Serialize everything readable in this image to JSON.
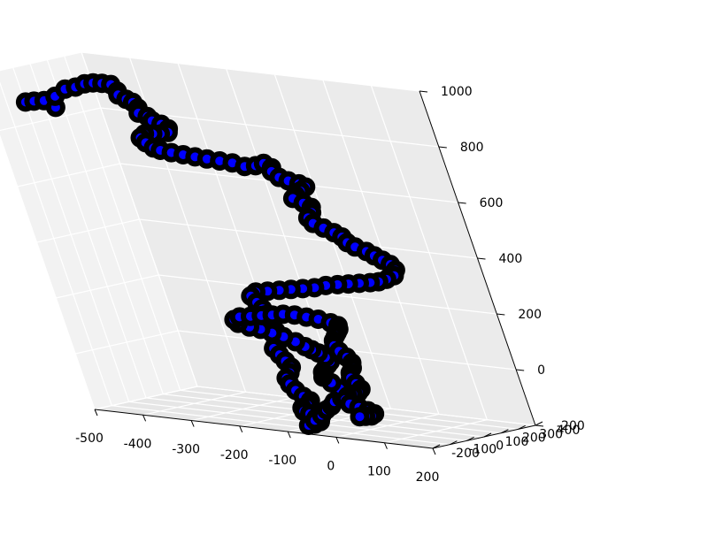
{
  "chart_data": {
    "type": "scatter",
    "projection": "3d",
    "title": "",
    "xlabel": "",
    "ylabel": "",
    "zlabel": "",
    "grid": true,
    "legend": "none",
    "xlim": [
      -500,
      200
    ],
    "ylim": [
      -200,
      400
    ],
    "zlim": [
      -200,
      1000
    ],
    "x_ticks": [
      -500,
      -400,
      -300,
      -200,
      -100,
      0,
      100,
      200
    ],
    "y_ticks": [
      -200,
      -100,
      0,
      100,
      200,
      300,
      400
    ],
    "z_ticks": [
      -200,
      0,
      200,
      400,
      600,
      800,
      1000
    ],
    "marker_color": "#0000ff",
    "marker_edge_color": "#000000",
    "pane_color": "#f2f2f2",
    "grid_color": "#e6e6e6",
    "series": [
      {
        "values_xyz": [
          [
            -455,
            -110,
            900
          ],
          [
            -440,
            -100,
            905
          ],
          [
            -420,
            -95,
            910
          ],
          [
            -400,
            -95,
            890
          ],
          [
            -395,
            -90,
            930
          ],
          [
            -370,
            -85,
            960
          ],
          [
            -350,
            -75,
            970
          ],
          [
            -330,
            -70,
            985
          ],
          [
            -315,
            -60,
            990
          ],
          [
            -300,
            -50,
            990
          ],
          [
            -290,
            -30,
            985
          ],
          [
            -285,
            -20,
            960
          ],
          [
            -290,
            -10,
            945
          ],
          [
            -280,
            0,
            930
          ],
          [
            -270,
            5,
            920
          ],
          [
            -265,
            10,
            900
          ],
          [
            -270,
            15,
            880
          ],
          [
            -255,
            20,
            870
          ],
          [
            -250,
            25,
            855
          ],
          [
            -235,
            30,
            845
          ],
          [
            -225,
            35,
            830
          ],
          [
            -230,
            40,
            815
          ],
          [
            -250,
            45,
            805
          ],
          [
            -270,
            55,
            800
          ],
          [
            -290,
            60,
            795
          ],
          [
            -300,
            55,
            780
          ],
          [
            -290,
            50,
            765
          ],
          [
            -275,
            45,
            750
          ],
          [
            -260,
            40,
            745
          ],
          [
            -240,
            45,
            740
          ],
          [
            -220,
            55,
            735
          ],
          [
            -200,
            65,
            730
          ],
          [
            -180,
            75,
            725
          ],
          [
            -160,
            90,
            720
          ],
          [
            -140,
            105,
            715
          ],
          [
            -120,
            115,
            705
          ],
          [
            -100,
            125,
            710
          ],
          [
            -85,
            135,
            720
          ],
          [
            -75,
            145,
            705
          ],
          [
            -80,
            150,
            690
          ],
          [
            -70,
            155,
            670
          ],
          [
            -55,
            160,
            660
          ],
          [
            -40,
            175,
            650
          ],
          [
            -30,
            180,
            640
          ],
          [
            -40,
            170,
            625
          ],
          [
            -50,
            160,
            610
          ],
          [
            -60,
            165,
            595
          ],
          [
            -45,
            175,
            580
          ],
          [
            -35,
            185,
            565
          ],
          [
            -40,
            190,
            545
          ],
          [
            -50,
            185,
            525
          ],
          [
            -45,
            190,
            505
          ],
          [
            -30,
            200,
            490
          ],
          [
            -15,
            210,
            475
          ],
          [
            -5,
            220,
            460
          ],
          [
            0,
            225,
            440
          ],
          [
            10,
            235,
            425
          ],
          [
            25,
            250,
            410
          ],
          [
            35,
            260,
            395
          ],
          [
            45,
            270,
            380
          ],
          [
            55,
            280,
            365
          ],
          [
            60,
            285,
            345
          ],
          [
            55,
            280,
            325
          ],
          [
            40,
            270,
            310
          ],
          [
            25,
            260,
            300
          ],
          [
            10,
            250,
            295
          ],
          [
            -10,
            240,
            290
          ],
          [
            -30,
            230,
            285
          ],
          [
            -50,
            220,
            280
          ],
          [
            -70,
            205,
            275
          ],
          [
            -90,
            190,
            265
          ],
          [
            -110,
            175,
            260
          ],
          [
            -130,
            160,
            255
          ],
          [
            -150,
            145,
            250
          ],
          [
            -170,
            130,
            245
          ],
          [
            -190,
            115,
            240
          ],
          [
            -200,
            105,
            225
          ],
          [
            -190,
            100,
            205
          ],
          [
            -180,
            95,
            185
          ],
          [
            -175,
            90,
            165
          ],
          [
            -180,
            85,
            145
          ],
          [
            -170,
            80,
            125
          ],
          [
            -160,
            75,
            110
          ],
          [
            -150,
            70,
            95
          ],
          [
            -155,
            65,
            80
          ],
          [
            -165,
            60,
            65
          ],
          [
            -170,
            55,
            50
          ],
          [
            -160,
            50,
            30
          ],
          [
            -150,
            45,
            10
          ],
          [
            -140,
            40,
            -10
          ],
          [
            -145,
            35,
            -30
          ],
          [
            -155,
            30,
            -50
          ],
          [
            -150,
            25,
            -70
          ],
          [
            -140,
            20,
            -90
          ],
          [
            -130,
            25,
            -110
          ],
          [
            -120,
            30,
            -125
          ],
          [
            -125,
            20,
            -140
          ],
          [
            -135,
            10,
            -150
          ],
          [
            -130,
            0,
            -160
          ],
          [
            -115,
            -10,
            -165
          ],
          [
            -100,
            -20,
            -175
          ],
          [
            -90,
            -30,
            -185
          ],
          [
            -100,
            -40,
            -195
          ],
          [
            -110,
            -50,
            -200
          ],
          [
            -95,
            -45,
            -180
          ],
          [
            -80,
            -35,
            -160
          ],
          [
            -70,
            -25,
            -140
          ],
          [
            -60,
            -15,
            -125
          ],
          [
            -55,
            -5,
            -110
          ],
          [
            -40,
            5,
            -95
          ],
          [
            -30,
            10,
            -80
          ],
          [
            -35,
            0,
            -60
          ],
          [
            -45,
            -10,
            -40
          ],
          [
            -55,
            -20,
            -20
          ],
          [
            -50,
            -25,
            0
          ],
          [
            -40,
            -30,
            15
          ],
          [
            -30,
            -35,
            30
          ],
          [
            -20,
            -40,
            45
          ],
          [
            -25,
            -45,
            60
          ],
          [
            -35,
            -50,
            75
          ],
          [
            -45,
            -55,
            85
          ],
          [
            -55,
            -60,
            95
          ],
          [
            -70,
            -65,
            110
          ],
          [
            -90,
            -70,
            125
          ],
          [
            -110,
            -75,
            135
          ],
          [
            -130,
            -80,
            145
          ],
          [
            -150,
            -85,
            150
          ],
          [
            -170,
            -90,
            160
          ],
          [
            -180,
            -80,
            170
          ],
          [
            -170,
            -70,
            180
          ],
          [
            -150,
            -60,
            185
          ],
          [
            -130,
            -50,
            190
          ],
          [
            -110,
            -40,
            195
          ],
          [
            -90,
            -30,
            200
          ],
          [
            -70,
            -20,
            200
          ],
          [
            -50,
            -10,
            195
          ],
          [
            -30,
            0,
            190
          ],
          [
            -10,
            10,
            180
          ],
          [
            0,
            20,
            170
          ],
          [
            -5,
            30,
            155
          ],
          [
            -15,
            40,
            140
          ],
          [
            -25,
            50,
            125
          ],
          [
            -35,
            55,
            105
          ],
          [
            -40,
            60,
            85
          ],
          [
            -35,
            65,
            65
          ],
          [
            -25,
            70,
            45
          ],
          [
            -20,
            75,
            25
          ],
          [
            -25,
            80,
            5
          ],
          [
            -35,
            85,
            -15
          ],
          [
            -40,
            90,
            -35
          ],
          [
            -35,
            95,
            -55
          ],
          [
            -30,
            100,
            -75
          ],
          [
            -40,
            105,
            -90
          ],
          [
            -55,
            110,
            -100
          ],
          [
            -70,
            115,
            -110
          ],
          [
            -80,
            120,
            -125
          ],
          [
            -75,
            125,
            -140
          ],
          [
            -60,
            130,
            -150
          ],
          [
            -45,
            135,
            -160
          ],
          [
            -35,
            140,
            -170
          ],
          [
            -45,
            145,
            -180
          ],
          [
            -60,
            150,
            -185
          ],
          [
            -75,
            155,
            -190
          ]
        ]
      }
    ]
  }
}
